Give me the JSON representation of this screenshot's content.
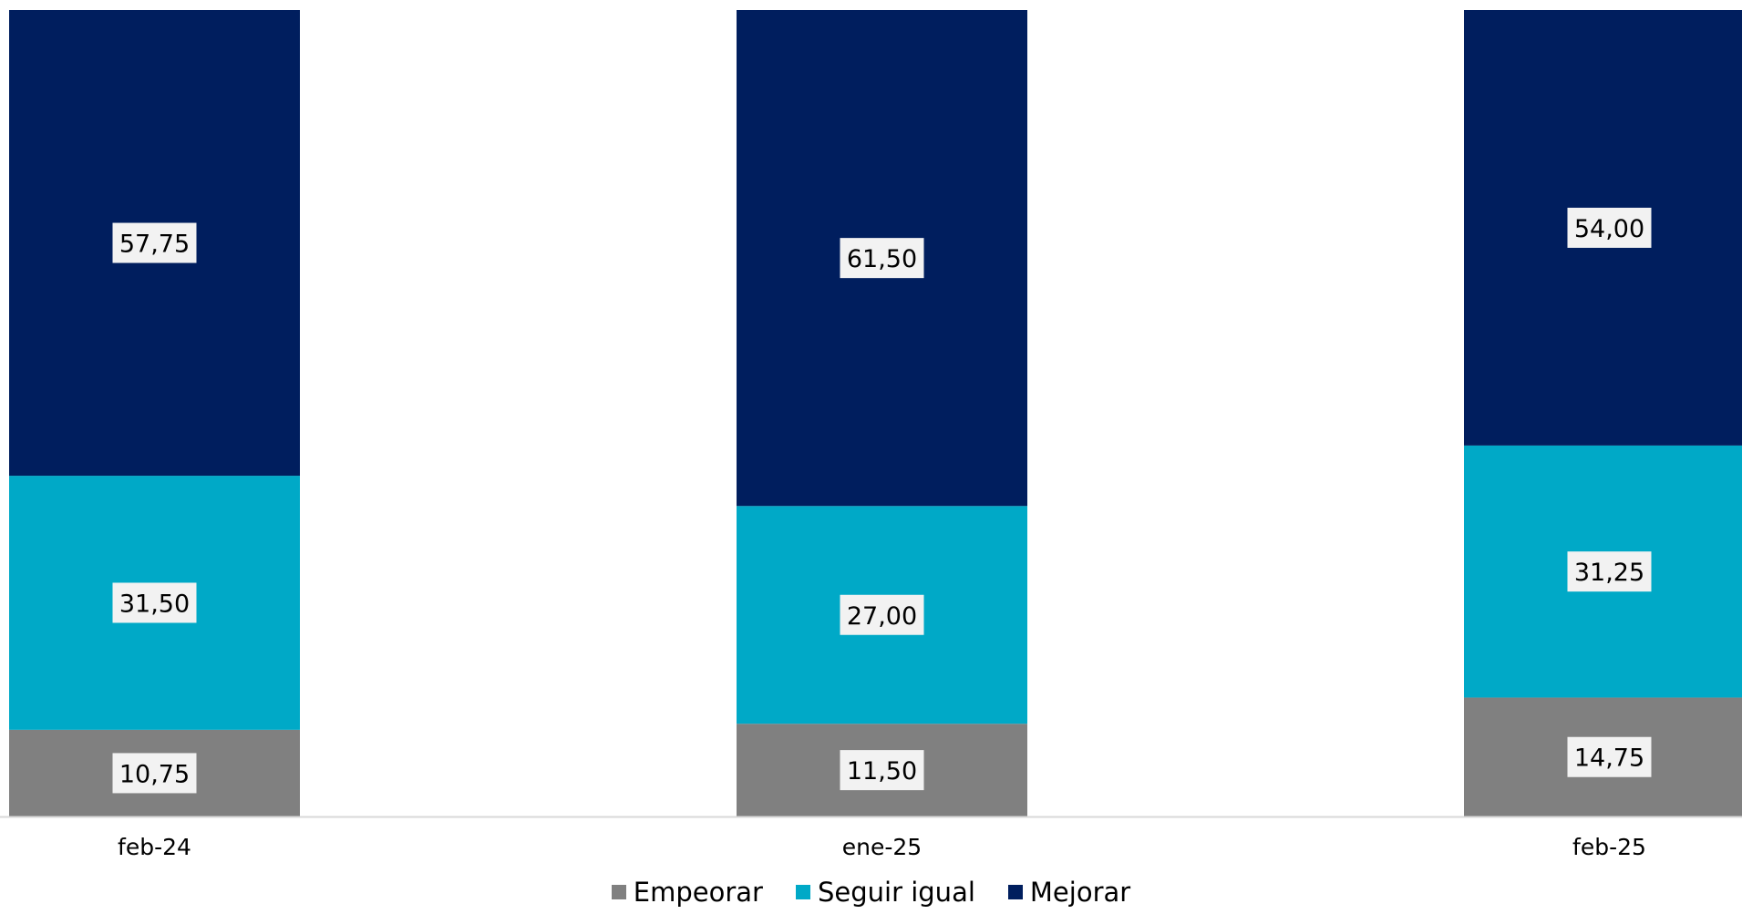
{
  "chart_data": {
    "type": "bar",
    "stacked": true,
    "normalized_percent": true,
    "categories": [
      "feb-24",
      "ene-25",
      "feb-25"
    ],
    "series": [
      {
        "name": "Empeorar",
        "color": "#808080",
        "values": [
          10.75,
          11.5,
          14.75
        ],
        "labels": [
          "10,75",
          "11,50",
          "14,75"
        ]
      },
      {
        "name": "Seguir igual",
        "color": "#00A9C7",
        "values": [
          31.5,
          27.0,
          31.25
        ],
        "labels": [
          "31,50",
          "27,00",
          "31,25"
        ]
      },
      {
        "name": "Mejorar",
        "color": "#001E5E",
        "values": [
          57.75,
          61.5,
          54.0
        ],
        "labels": [
          "57,75",
          "61,50",
          "54,00"
        ]
      }
    ],
    "ylim": [
      0,
      100
    ],
    "legend_position": "bottom",
    "grid": false
  }
}
